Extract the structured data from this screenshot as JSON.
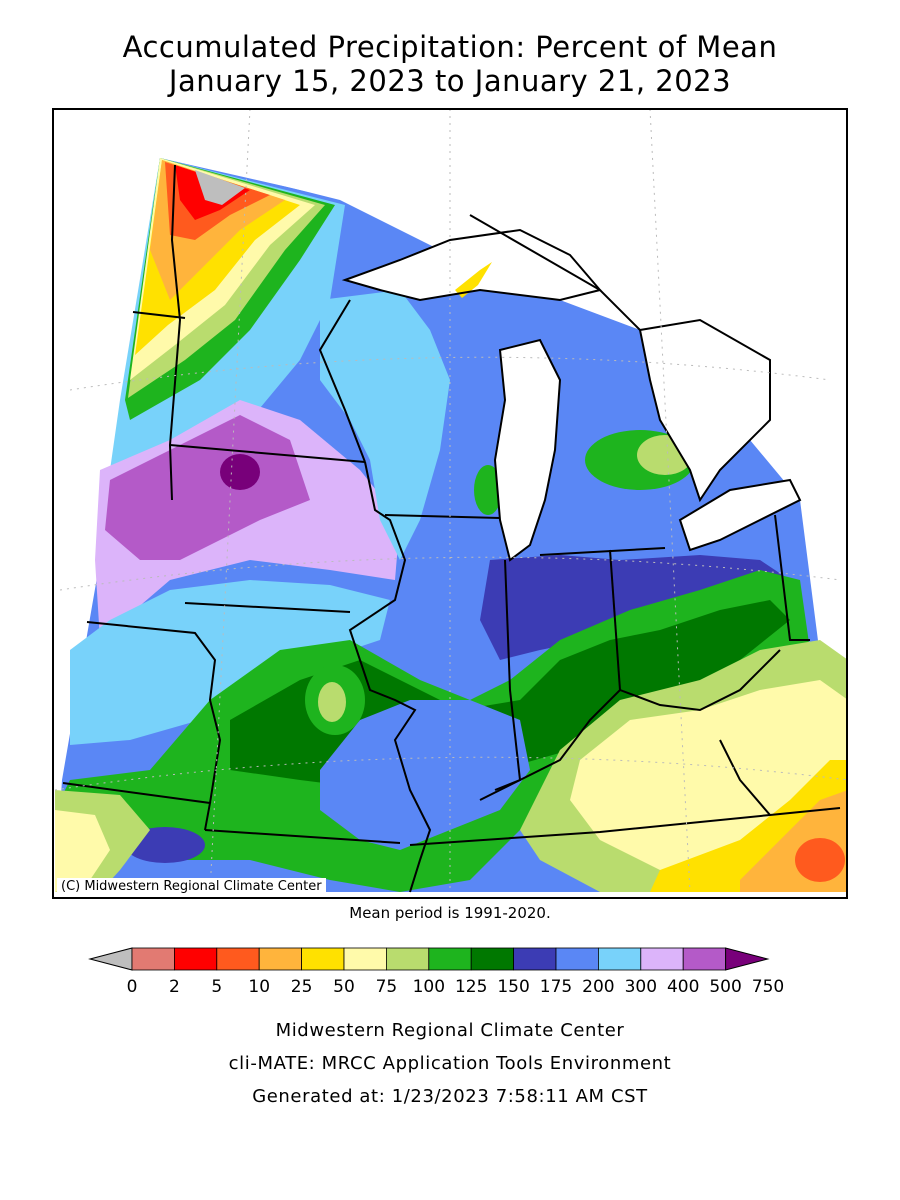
{
  "title": {
    "line1": "Accumulated Precipitation: Percent of Mean",
    "line2": "January 15, 2023 to January 21, 2023"
  },
  "map": {
    "copyright": "(C) Midwestern Regional Climate Center",
    "mean_period_note": "Mean period is 1991-2020."
  },
  "legend": {
    "bins": [
      {
        "label": "0",
        "color": "#bebebe"
      },
      {
        "label": "2",
        "color": "#e27a72"
      },
      {
        "label": "5",
        "color": "#ff0000"
      },
      {
        "label": "10",
        "color": "#ff5a1e"
      },
      {
        "label": "25",
        "color": "#ffb43c"
      },
      {
        "label": "50",
        "color": "#ffe100"
      },
      {
        "label": "75",
        "color": "#fffaaa"
      },
      {
        "label": "100",
        "color": "#b9dc6e"
      },
      {
        "label": "125",
        "color": "#1eb41e"
      },
      {
        "label": "150",
        "color": "#007800"
      },
      {
        "label": "175",
        "color": "#3c3cb4"
      },
      {
        "label": "200",
        "color": "#5a87f5"
      },
      {
        "label": "300",
        "color": "#78d2fa"
      },
      {
        "label": "400",
        "color": "#dcb4fa"
      },
      {
        "label": "500",
        "color": "#b45ac8"
      },
      {
        "label": "750",
        "color": "#78007a"
      }
    ]
  },
  "footer": {
    "org": "Midwestern Regional Climate Center",
    "tool": "cli-MATE: MRCC Application Tools Environment",
    "generated": "Generated at: 1/23/2023 7:58:11 AM CST"
  }
}
